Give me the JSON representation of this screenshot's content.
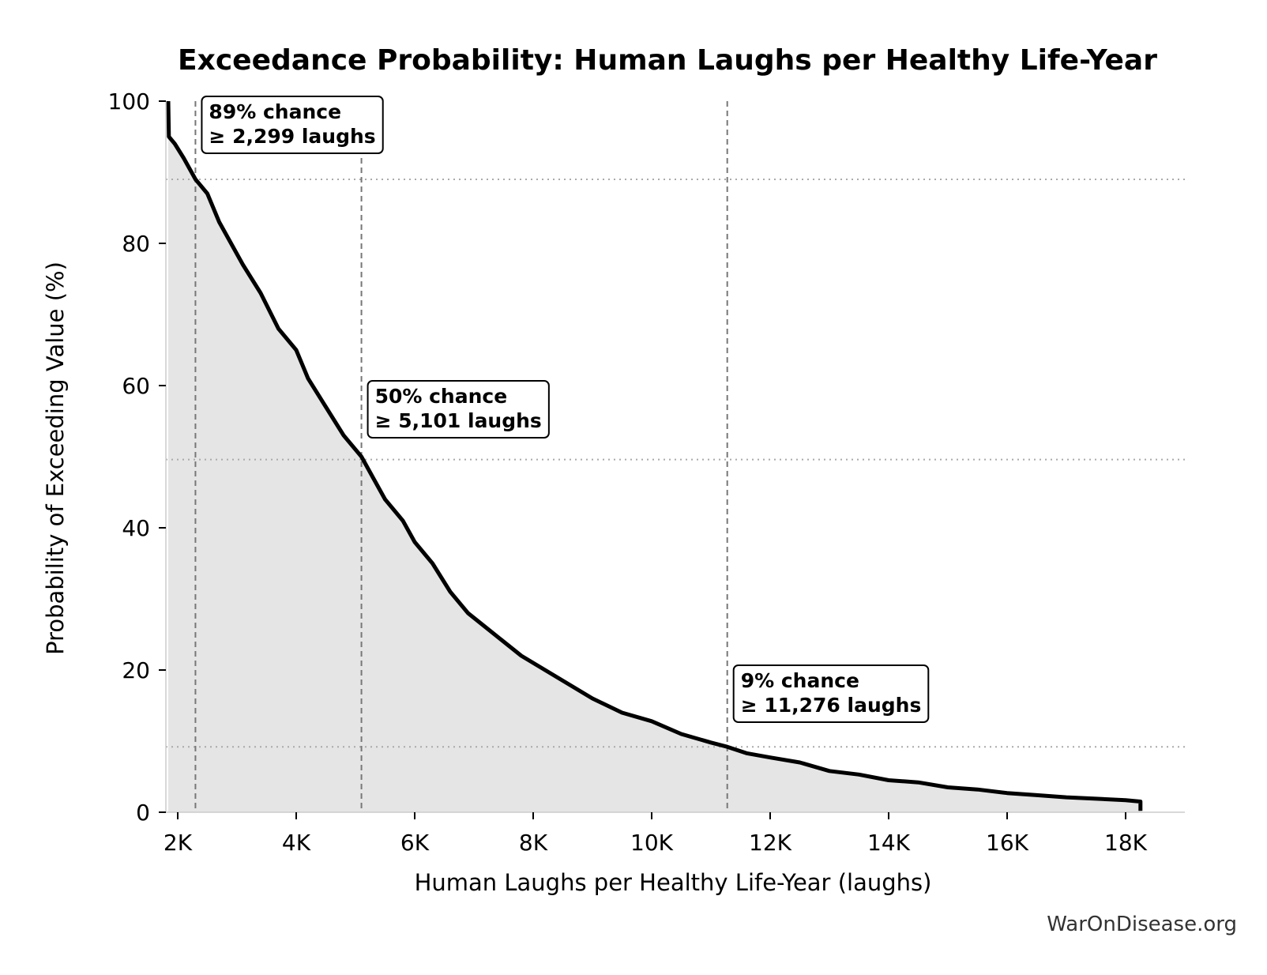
{
  "chart_data": {
    "type": "line",
    "title": "Exceedance Probability: Human Laughs per Healthy Life-Year",
    "xlabel": "Human Laughs per Healthy Life-Year (laughs)",
    "ylabel": "Probability of Exceeding Value (%)",
    "xlim": [
      1800,
      19000
    ],
    "ylim": [
      0,
      100
    ],
    "x_ticks": [
      {
        "value": 2000,
        "label": "2K"
      },
      {
        "value": 4000,
        "label": "4K"
      },
      {
        "value": 6000,
        "label": "6K"
      },
      {
        "value": 8000,
        "label": "8K"
      },
      {
        "value": 10000,
        "label": "10K"
      },
      {
        "value": 12000,
        "label": "12K"
      },
      {
        "value": 14000,
        "label": "14K"
      },
      {
        "value": 16000,
        "label": "16K"
      },
      {
        "value": 18000,
        "label": "18K"
      }
    ],
    "y_ticks": [
      {
        "value": 0,
        "label": "0"
      },
      {
        "value": 20,
        "label": "20"
      },
      {
        "value": 40,
        "label": "40"
      },
      {
        "value": 60,
        "label": "60"
      },
      {
        "value": 80,
        "label": "80"
      },
      {
        "value": 100,
        "label": "100"
      }
    ],
    "series": [
      {
        "color": "#000000",
        "fill": "#e5e5e5",
        "points": [
          [
            1840,
            100
          ],
          [
            1850,
            95
          ],
          [
            1950,
            94
          ],
          [
            2100,
            92
          ],
          [
            2300,
            89
          ],
          [
            2500,
            87
          ],
          [
            2700,
            83
          ],
          [
            2900,
            80
          ],
          [
            3100,
            77
          ],
          [
            3400,
            73
          ],
          [
            3700,
            68
          ],
          [
            4000,
            65
          ],
          [
            4200,
            61
          ],
          [
            4500,
            57
          ],
          [
            4800,
            53
          ],
          [
            5101,
            50
          ],
          [
            5300,
            47
          ],
          [
            5500,
            44
          ],
          [
            5800,
            41
          ],
          [
            6000,
            38
          ],
          [
            6300,
            35
          ],
          [
            6600,
            31
          ],
          [
            6900,
            28
          ],
          [
            7200,
            26
          ],
          [
            7500,
            24
          ],
          [
            7800,
            22
          ],
          [
            8100,
            20.5
          ],
          [
            8500,
            18.5
          ],
          [
            9000,
            16
          ],
          [
            9500,
            14
          ],
          [
            10000,
            12.8
          ],
          [
            10500,
            11
          ],
          [
            11000,
            9.8
          ],
          [
            11276,
            9.2
          ],
          [
            11600,
            8.3
          ],
          [
            12000,
            7.7
          ],
          [
            12500,
            7
          ],
          [
            13000,
            5.8
          ],
          [
            13500,
            5.3
          ],
          [
            14000,
            4.5
          ],
          [
            14500,
            4.2
          ],
          [
            15000,
            3.5
          ],
          [
            15500,
            3.2
          ],
          [
            16000,
            2.7
          ],
          [
            16500,
            2.4
          ],
          [
            17000,
            2.1
          ],
          [
            17500,
            1.9
          ],
          [
            18000,
            1.7
          ],
          [
            18250,
            1.5
          ],
          [
            18250,
            0.2
          ]
        ]
      }
    ],
    "reference_lines": [
      {
        "x": 2299,
        "y": 89
      },
      {
        "x": 5101,
        "y": 49.6
      },
      {
        "x": 11276,
        "y": 9.2
      }
    ],
    "annotations": [
      {
        "line1": "89% chance",
        "line2": "≥ 2,299 laughs",
        "x": 2299,
        "y": 100
      },
      {
        "line1": "50% chance",
        "line2": "≥ 5,101 laughs",
        "x": 5101,
        "y": 60
      },
      {
        "line1": "9% chance",
        "line2": "≥ 11,276 laughs",
        "x": 11276,
        "y": 20
      }
    ],
    "grid": false,
    "legend": "none"
  },
  "credit": "WarOnDisease.org"
}
